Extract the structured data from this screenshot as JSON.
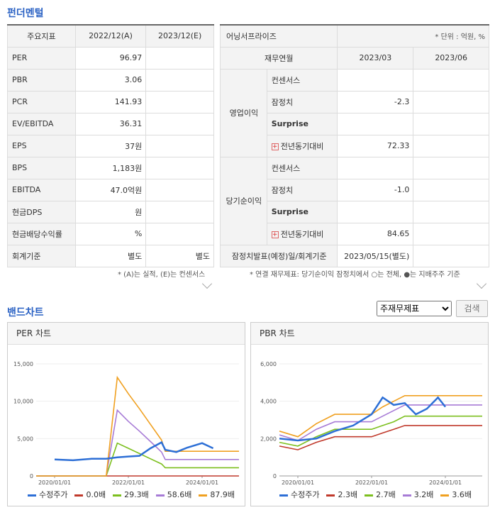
{
  "fundamental": {
    "title": "펀더멘털",
    "left": {
      "headers": [
        "주요지표",
        "2022/12(A)",
        "2023/12(E)"
      ],
      "rows": [
        [
          "PER",
          "96.97",
          ""
        ],
        [
          "PBR",
          "3.06",
          ""
        ],
        [
          "PCR",
          "141.93",
          ""
        ],
        [
          "EV/EBITDA",
          "36.31",
          ""
        ],
        [
          "EPS",
          "37원",
          ""
        ],
        [
          "BPS",
          "1,183원",
          ""
        ],
        [
          "EBITDA",
          "47.0억원",
          ""
        ],
        [
          "현금DPS",
          "원",
          ""
        ],
        [
          "현금배당수익률",
          "%",
          ""
        ],
        [
          "회계기준",
          "별도",
          "별도"
        ]
      ],
      "note": "* (A)는 실적, (E)는 컨센서스"
    },
    "right": {
      "title": "어닝서프라이즈",
      "unit": "* 단위 : 억원, %",
      "headers": [
        "재무연월",
        "2023/03",
        "2023/06"
      ],
      "group1": "영업이익",
      "group2": "당기순이익",
      "sub": [
        "컨센서스",
        "잠정치",
        "Surprise",
        "전년동기대비"
      ],
      "op_values": [
        "",
        "-2.3",
        "",
        "72.33"
      ],
      "net_values": [
        "",
        "-1.0",
        "",
        "84.65"
      ],
      "footer_label": "잠정치발표(예정)일/회계기준",
      "footer_value": "2023/05/15(별도)",
      "note": "* 연결 재무제표: 당기순이익 잠정치에서 ○는 전체, ●는 지배주주 기준"
    }
  },
  "band": {
    "title": "밴드차트",
    "select_value": "주재무제표",
    "search_label": "검색"
  },
  "chart_data": [
    {
      "type": "line",
      "title": "PER 차트",
      "x_ticks": [
        "2020/01/01",
        "2022/01/01",
        "2024/01/01"
      ],
      "y_ticks": [
        "0",
        "5,000",
        "10,000",
        "15,000"
      ],
      "ylim": [
        0,
        15000
      ],
      "x": [
        2019.5,
        2020.0,
        2020.5,
        2021.0,
        2021.4,
        2021.7,
        2022.0,
        2022.3,
        2022.6,
        2022.9,
        2023.0,
        2023.3,
        2023.6,
        2024.0,
        2024.3,
        2024.6,
        2025.0
      ],
      "series": [
        {
          "name": "수정주가",
          "color": "#2d6fd6",
          "values": [
            null,
            2200,
            2100,
            2300,
            2300,
            2500,
            2600,
            2700,
            3700,
            4500,
            3500,
            3200,
            3800,
            4400,
            3700,
            null,
            null
          ]
        },
        {
          "name": "0.0배",
          "color": "#c0392b",
          "values": [
            0,
            0,
            0,
            0,
            0,
            0,
            0,
            0,
            0,
            0,
            0,
            0,
            0,
            0,
            0,
            0,
            0
          ]
        },
        {
          "name": "29.3배",
          "color": "#7cbf1e",
          "values": [
            0,
            0,
            0,
            0,
            0,
            4400,
            3700,
            3000,
            2300,
            1600,
            1100,
            1100,
            1100,
            1100,
            1100,
            1100,
            1100
          ]
        },
        {
          "name": "58.6배",
          "color": "#a77bd6",
          "values": [
            0,
            0,
            0,
            0,
            0,
            8800,
            7300,
            6000,
            4600,
            3200,
            2200,
            2200,
            2200,
            2200,
            2200,
            2200,
            2200
          ]
        },
        {
          "name": "87.9배",
          "color": "#f0a020",
          "values": [
            0,
            0,
            0,
            0,
            0,
            13200,
            11000,
            9000,
            6900,
            4800,
            3300,
            3300,
            3300,
            3300,
            3300,
            3300,
            3300
          ]
        }
      ]
    },
    {
      "type": "line",
      "title": "PBR 차트",
      "x_ticks": [
        "2020/01/01",
        "2022/01/01",
        "2024/01/01"
      ],
      "y_ticks": [
        "0",
        "2,000",
        "4,000",
        "6,000"
      ],
      "ylim": [
        0,
        6000
      ],
      "x": [
        2019.5,
        2020.0,
        2020.5,
        2021.0,
        2021.5,
        2022.0,
        2022.3,
        2022.6,
        2022.9,
        2023.2,
        2023.5,
        2023.8,
        2024.0,
        2024.5,
        2025.0
      ],
      "series": [
        {
          "name": "수정주가",
          "color": "#2d6fd6",
          "values": [
            2000,
            1900,
            2000,
            2400,
            2700,
            3300,
            4200,
            3800,
            3900,
            3300,
            3600,
            4200,
            3700,
            null,
            null
          ]
        },
        {
          "name": "2.3배",
          "color": "#c0392b",
          "values": [
            1600,
            1400,
            1800,
            2100,
            2100,
            2100,
            2300,
            2500,
            2700,
            2700,
            2700,
            2700,
            2700,
            2700,
            2700
          ]
        },
        {
          "name": "2.7배",
          "color": "#7cbf1e",
          "values": [
            1800,
            1600,
            2100,
            2500,
            2500,
            2500,
            2700,
            2900,
            3200,
            3200,
            3200,
            3200,
            3200,
            3200,
            3200
          ]
        },
        {
          "name": "3.2배",
          "color": "#a77bd6",
          "values": [
            2200,
            1900,
            2500,
            2900,
            2900,
            2900,
            3200,
            3500,
            3800,
            3800,
            3800,
            3800,
            3800,
            3800,
            3800
          ]
        },
        {
          "name": "3.6배",
          "color": "#f0a020",
          "values": [
            2400,
            2100,
            2800,
            3300,
            3300,
            3300,
            3700,
            4000,
            4300,
            4300,
            4300,
            4300,
            4300,
            4300,
            4300
          ]
        }
      ]
    }
  ]
}
